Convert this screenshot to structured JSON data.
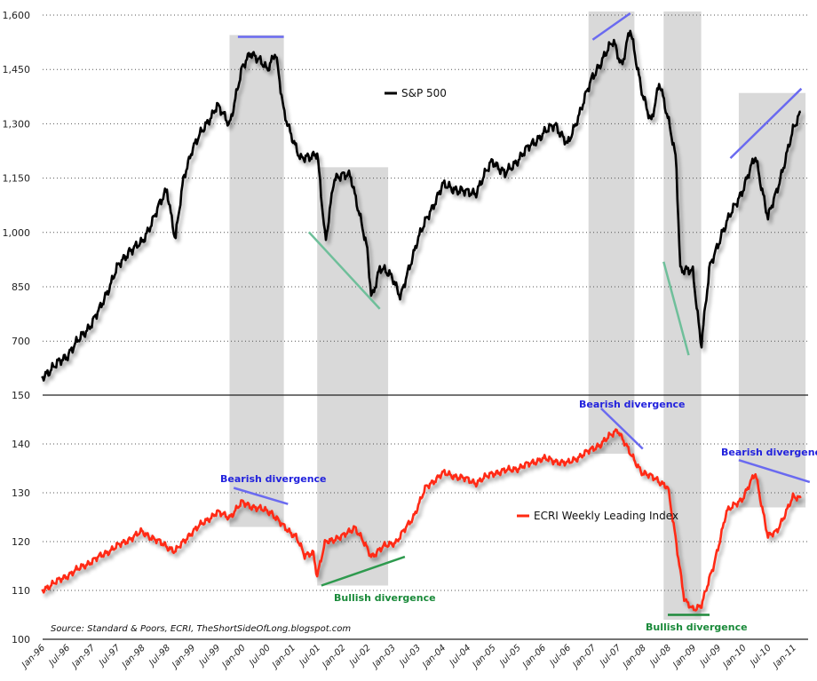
{
  "chart_data": [
    {
      "type": "line",
      "panel": "top",
      "yticks": [
        "1,600",
        "1,450",
        "1,300",
        "1,150",
        "1,000",
        "850",
        "700"
      ],
      "ytick_values": [
        1600,
        1450,
        1300,
        1150,
        1000,
        850,
        700
      ],
      "ylim": [
        550,
        1600
      ],
      "grid": "dotted horizontal",
      "legend_placement": "top-center",
      "series": [
        {
          "name": "S&P 500",
          "color": "#000000",
          "points": [
            [
              "1996-01",
              600
            ],
            [
              "1996-07",
              660
            ],
            [
              "1997-01",
              750
            ],
            [
              "1997-03",
              790
            ],
            [
              "1997-07",
              900
            ],
            [
              "1997-10",
              950
            ],
            [
              "1998-01",
              970
            ],
            [
              "1998-07",
              1120
            ],
            [
              "1998-09",
              980
            ],
            [
              "1998-11",
              1150
            ],
            [
              "1999-01",
              1230
            ],
            [
              "1999-07",
              1350
            ],
            [
              "1999-10",
              1300
            ],
            [
              "2000-01",
              1450
            ],
            [
              "2000-03",
              1500
            ],
            [
              "2000-07",
              1450
            ],
            [
              "2000-09",
              1500
            ],
            [
              "2000-11",
              1330
            ],
            [
              "2001-03",
              1200
            ],
            [
              "2001-07",
              1220
            ],
            [
              "2001-09",
              970
            ],
            [
              "2001-11",
              1150
            ],
            [
              "2002-03",
              1160
            ],
            [
              "2002-07",
              950
            ],
            [
              "2002-08",
              820
            ],
            [
              "2002-10",
              900
            ],
            [
              "2003-01",
              880
            ],
            [
              "2003-03",
              820
            ],
            [
              "2003-07",
              980
            ],
            [
              "2004-01",
              1130
            ],
            [
              "2004-07",
              1110
            ],
            [
              "2004-09",
              1110
            ],
            [
              "2005-01",
              1200
            ],
            [
              "2005-04",
              1160
            ],
            [
              "2005-10",
              1240
            ],
            [
              "2006-04",
              1300
            ],
            [
              "2006-07",
              1240
            ],
            [
              "2007-01",
              1430
            ],
            [
              "2007-06",
              1530
            ],
            [
              "2007-08",
              1460
            ],
            [
              "2007-10",
              1560
            ],
            [
              "2008-01",
              1380
            ],
            [
              "2008-03",
              1300
            ],
            [
              "2008-05",
              1420
            ],
            [
              "2008-08",
              1260
            ],
            [
              "2008-09",
              1200
            ],
            [
              "2008-10",
              900
            ],
            [
              "2009-01",
              890
            ],
            [
              "2009-03",
              690
            ],
            [
              "2009-05",
              900
            ],
            [
              "2009-08",
              1000
            ],
            [
              "2010-01",
              1120
            ],
            [
              "2010-04",
              1210
            ],
            [
              "2010-07",
              1040
            ],
            [
              "2010-09",
              1110
            ],
            [
              "2011-01",
              1280
            ],
            [
              "2011-03",
              1340
            ]
          ]
        }
      ],
      "trendlines": [
        {
          "color": "#6a6af0",
          "from": [
            "1999-12",
            1540
          ],
          "to": [
            "2000-11",
            1540
          ]
        },
        {
          "color": "#6fbf9a",
          "from": [
            "2001-05",
            1001
          ],
          "to": [
            "2002-10",
            789
          ]
        },
        {
          "color": "#6a6af0",
          "from": [
            "2007-01",
            1532
          ],
          "to": [
            "2007-10",
            1605
          ]
        },
        {
          "color": "#6fbf9a",
          "from": [
            "2008-06",
            919
          ],
          "to": [
            "2008-12",
            661
          ]
        },
        {
          "color": "#6a6af0",
          "from": [
            "2009-10",
            1205
          ],
          "to": [
            "2011-03",
            1397
          ]
        }
      ]
    },
    {
      "type": "line",
      "panel": "bottom",
      "yticks": [
        "150",
        "140",
        "130",
        "120",
        "110",
        "100"
      ],
      "ytick_values": [
        150,
        140,
        130,
        120,
        110,
        100
      ],
      "ylim": [
        100,
        150
      ],
      "grid": "dotted horizontal",
      "legend_placement": "center-right",
      "xticks": [
        "Jan-96",
        "Jul-96",
        "Jan-97",
        "Jul-97",
        "Jan-98",
        "Jul-98",
        "Jan-99",
        "Jul-99",
        "Jan-00",
        "Jul-00",
        "Jan-01",
        "Jul-01",
        "Jan-02",
        "Jul-02",
        "Jan-03",
        "Jul-03",
        "Jan-04",
        "Jul-04",
        "Jan-05",
        "Jul-05",
        "Jan-06",
        "Jul-06",
        "Jan-07",
        "Jul-07",
        "Jan-08",
        "Jul-08",
        "Jan-09",
        "Jul-09",
        "Jan-10",
        "Jul-10",
        "Jan-11"
      ],
      "series": [
        {
          "name": "ECRI Weekly Leading Index",
          "color": "#ff2a12",
          "points": [
            [
              "1996-01",
              110
            ],
            [
              "1996-07",
              113
            ],
            [
              "1997-01",
              116
            ],
            [
              "1997-07",
              119
            ],
            [
              "1998-01",
              122
            ],
            [
              "1998-07",
              119
            ],
            [
              "1998-09",
              118
            ],
            [
              "1999-01",
              122
            ],
            [
              "1999-07",
              126
            ],
            [
              "1999-10",
              125
            ],
            [
              "2000-01",
              128
            ],
            [
              "2000-04",
              127
            ],
            [
              "2000-08",
              126
            ],
            [
              "2000-11",
              123
            ],
            [
              "2001-02",
              121
            ],
            [
              "2001-04",
              117
            ],
            [
              "2001-06",
              118
            ],
            [
              "2001-07",
              113
            ],
            [
              "2001-09",
              120
            ],
            [
              "2002-01",
              121
            ],
            [
              "2002-04",
              123
            ],
            [
              "2002-08",
              117
            ],
            [
              "2002-11",
              119
            ],
            [
              "2003-02",
              120
            ],
            [
              "2003-06",
              125
            ],
            [
              "2003-09",
              131
            ],
            [
              "2004-01",
              134
            ],
            [
              "2004-06",
              133
            ],
            [
              "2004-09",
              132
            ],
            [
              "2005-01",
              134
            ],
            [
              "2005-07",
              135
            ],
            [
              "2006-01",
              137
            ],
            [
              "2006-07",
              136
            ],
            [
              "2006-11",
              138
            ],
            [
              "2007-03",
              140
            ],
            [
              "2007-07",
              143
            ],
            [
              "2007-10",
              138
            ],
            [
              "2008-01",
              134
            ],
            [
              "2008-04",
              133
            ],
            [
              "2008-07",
              131
            ],
            [
              "2008-09",
              120
            ],
            [
              "2008-11",
              108
            ],
            [
              "2009-01",
              106
            ],
            [
              "2009-03",
              107
            ],
            [
              "2009-06",
              115
            ],
            [
              "2009-09",
              126
            ],
            [
              "2010-01",
              129
            ],
            [
              "2010-04",
              134
            ],
            [
              "2010-07",
              121
            ],
            [
              "2010-09",
              122
            ],
            [
              "2011-01",
              129
            ],
            [
              "2011-03",
              129
            ]
          ]
        }
      ],
      "trendlines": [
        {
          "color": "#6a6af0",
          "from": [
            "1999-11",
            131
          ],
          "to": [
            "2000-12",
            127.7
          ]
        },
        {
          "color": "#2e9a4e",
          "from": [
            "2001-08",
            111
          ],
          "to": [
            "2003-04",
            116.9
          ]
        },
        {
          "color": "#6a6af0",
          "from": [
            "2007-03",
            147.3
          ],
          "to": [
            "2008-01",
            139
          ]
        },
        {
          "color": "#1f8a3c",
          "from": [
            "2008-07",
            105
          ],
          "to": [
            "2009-05",
            105
          ]
        },
        {
          "color": "#6a6af0",
          "from": [
            "2009-12",
            136.7
          ],
          "to": [
            "2011-05",
            132.2
          ]
        }
      ]
    }
  ],
  "shaded_periods": [
    {
      "from": "1999-10",
      "to": "2000-11",
      "top_sp": 1545,
      "bottom_ecri": 123
    },
    {
      "from": "2001-07",
      "to": "2002-12",
      "top_sp": 1180,
      "bottom_ecri": 111
    },
    {
      "from": "2006-12",
      "to": "2007-11",
      "top_sp": 1610,
      "bottom_ecri": 138
    },
    {
      "from": "2008-06",
      "to": "2009-03",
      "top_sp": 1610,
      "bottom_ecri": 104
    },
    {
      "from": "2009-12",
      "to": "2011-04",
      "top_sp": 1385,
      "bottom_ecri": 127
    }
  ],
  "shade_color": "#d9d9d9",
  "annotations": {
    "bearish_1": "Bearish divergence",
    "bullish_1": "Bullish divergence",
    "bearish_2": "Bearish divergence",
    "bullish_2": "Bullish divergence",
    "bearish_3": "Bearish divergence",
    "bearish_color": "#2222dd",
    "bullish_color": "#1a8a3a"
  },
  "legend": {
    "sp": "S&P 500",
    "ecri": "ECRI Weekly Leading Index"
  },
  "source": "Source: Standard & Poors, ECRI, TheShortSideOfLong.blogspot.com"
}
